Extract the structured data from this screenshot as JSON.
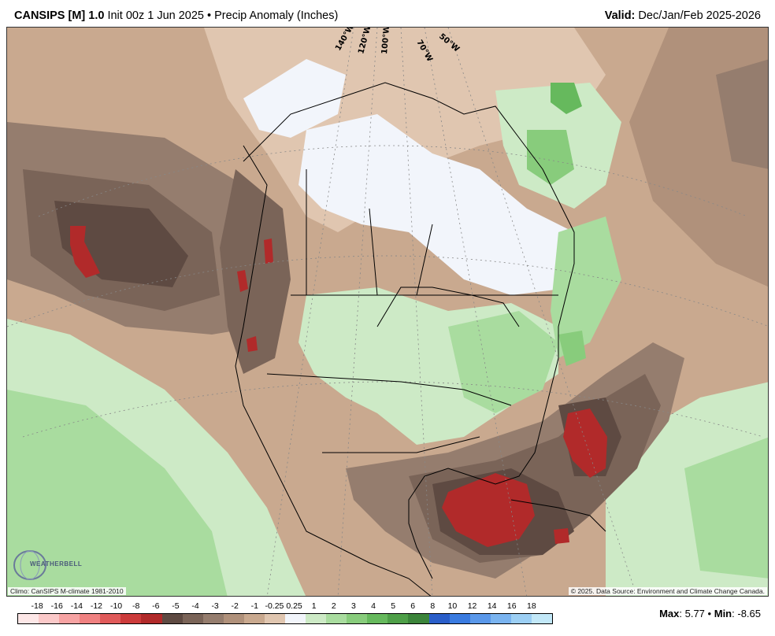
{
  "header": {
    "model": "CANSIPS [M] 1.0",
    "init": "Init 00z 1 Jun 2025",
    "separator": "•",
    "product": "Precip Anomaly (Inches)",
    "valid_label": "Valid:",
    "valid_period": "Dec/Jan/Feb 2025-2026"
  },
  "map": {
    "longitude_labels": [
      "140°W",
      "120°W",
      "100°W",
      "70°W",
      "50°W"
    ]
  },
  "credits": {
    "climo": "Climo: CanSIPS M-climate 1981-2010",
    "copyright": "© 2025. Data Source: Environment and Climate Change Canada."
  },
  "logo": {
    "text": "WEATHERBELL"
  },
  "legend": {
    "labels": [
      "-18",
      "-16",
      "-14",
      "-12",
      "-10",
      "-8",
      "-6",
      "-5",
      "-4",
      "-3",
      "-2",
      "-1",
      "-0.25",
      "0.25",
      "1",
      "2",
      "3",
      "4",
      "5",
      "6",
      "8",
      "10",
      "12",
      "14",
      "16",
      "18"
    ],
    "colors": [
      "#fde7e7",
      "#fbc9c9",
      "#f7a3a3",
      "#f08181",
      "#e05a5a",
      "#cc3b3b",
      "#b12a2a",
      "#5e4a42",
      "#7a6458",
      "#957d6e",
      "#b0917b",
      "#c9a98f",
      "#e0c6b0",
      "#f2f5fb",
      "#cdeac6",
      "#a9dc9f",
      "#88cc7c",
      "#66b95d",
      "#4e9f48",
      "#3b843a",
      "#2a5ec9",
      "#3a7be0",
      "#5a98ea",
      "#7ab4f0",
      "#9ccff4",
      "#c2e8f8"
    ]
  },
  "stats": {
    "max_label": "Max",
    "max_value": "5.77",
    "sep": "•",
    "min_label": "Min",
    "min_value": "-8.65"
  }
}
